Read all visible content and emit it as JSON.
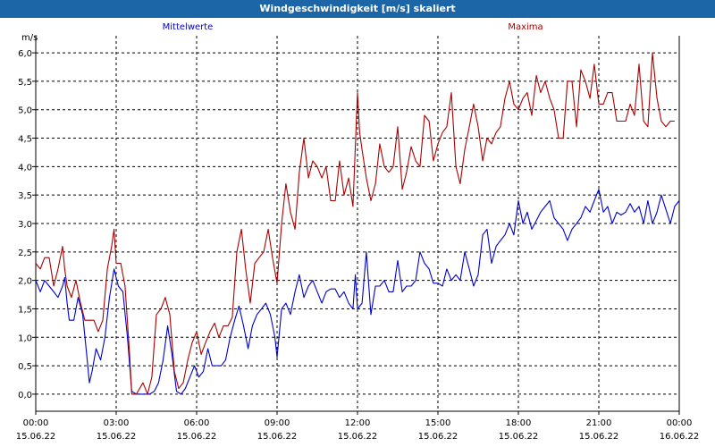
{
  "window": {
    "title": "Windgeschwindigkeit [m/s] skaliert"
  },
  "chart_data": {
    "type": "line",
    "title": "Windgeschwindigkeit [m/s] skaliert",
    "ylabel": "m/s",
    "xlabel": "",
    "ylim": [
      -0.3,
      6.3
    ],
    "xlim": [
      0,
      24
    ],
    "grid": true,
    "legend_placement": "top",
    "y_ticks": [
      0.0,
      0.5,
      1.0,
      1.5,
      2.0,
      2.5,
      3.0,
      3.5,
      4.0,
      4.5,
      5.0,
      5.5,
      6.0
    ],
    "y_tick_labels": [
      "0,0",
      "0,5",
      "1,0",
      "1,5",
      "2,0",
      "2,5",
      "3,0",
      "3,5",
      "4,0",
      "4,5",
      "5,0",
      "5,5",
      "6,0"
    ],
    "x_ticks": [
      {
        "time": "00:00",
        "date": "15.06.22"
      },
      {
        "time": "03:00",
        "date": "15.06.22"
      },
      {
        "time": "06:00",
        "date": "15.06.22"
      },
      {
        "time": "09:00",
        "date": "15.06.22"
      },
      {
        "time": "12:00",
        "date": "15.06.22"
      },
      {
        "time": "15:00",
        "date": "15.06.22"
      },
      {
        "time": "18:00",
        "date": "15.06.22"
      },
      {
        "time": "21:00",
        "date": "15.06.22"
      },
      {
        "time": "00:00",
        "date": "16.06.22"
      }
    ],
    "series": [
      {
        "name": "Mittelwerte",
        "color": "#0000cc",
        "points": [
          [
            0.0,
            2.0
          ],
          [
            0.17,
            1.8
          ],
          [
            0.33,
            2.0
          ],
          [
            0.5,
            1.9
          ],
          [
            0.67,
            1.8
          ],
          [
            0.83,
            1.7
          ],
          [
            1.0,
            1.9
          ],
          [
            1.08,
            2.05
          ],
          [
            1.17,
            1.6
          ],
          [
            1.25,
            1.3
          ],
          [
            1.42,
            1.3
          ],
          [
            1.58,
            1.7
          ],
          [
            1.75,
            1.4
          ],
          [
            1.92,
            0.6
          ],
          [
            2.0,
            0.2
          ],
          [
            2.1,
            0.4
          ],
          [
            2.25,
            0.8
          ],
          [
            2.42,
            0.6
          ],
          [
            2.58,
            1.0
          ],
          [
            2.75,
            1.7
          ],
          [
            2.92,
            2.2
          ],
          [
            3.08,
            1.9
          ],
          [
            3.25,
            1.8
          ],
          [
            3.42,
            1.0
          ],
          [
            3.58,
            0.05
          ],
          [
            3.75,
            0.0
          ],
          [
            4.0,
            0.0
          ],
          [
            4.25,
            0.0
          ],
          [
            4.42,
            0.05
          ],
          [
            4.58,
            0.2
          ],
          [
            4.75,
            0.6
          ],
          [
            4.92,
            1.2
          ],
          [
            5.08,
            0.7
          ],
          [
            5.25,
            0.05
          ],
          [
            5.42,
            0.0
          ],
          [
            5.58,
            0.1
          ],
          [
            5.75,
            0.3
          ],
          [
            5.92,
            0.5
          ],
          [
            6.08,
            0.3
          ],
          [
            6.25,
            0.4
          ],
          [
            6.42,
            0.8
          ],
          [
            6.58,
            0.5
          ],
          [
            6.75,
            0.5
          ],
          [
            6.92,
            0.5
          ],
          [
            7.08,
            0.6
          ],
          [
            7.25,
            1.0
          ],
          [
            7.42,
            1.3
          ],
          [
            7.58,
            1.55
          ],
          [
            7.75,
            1.2
          ],
          [
            7.92,
            0.8
          ],
          [
            8.08,
            1.2
          ],
          [
            8.25,
            1.4
          ],
          [
            8.42,
            1.5
          ],
          [
            8.58,
            1.6
          ],
          [
            8.75,
            1.4
          ],
          [
            8.92,
            1.0
          ],
          [
            9.0,
            0.65
          ],
          [
            9.17,
            1.5
          ],
          [
            9.33,
            1.6
          ],
          [
            9.5,
            1.4
          ],
          [
            9.67,
            1.8
          ],
          [
            9.83,
            2.1
          ],
          [
            10.0,
            1.7
          ],
          [
            10.17,
            1.9
          ],
          [
            10.33,
            2.0
          ],
          [
            10.5,
            1.8
          ],
          [
            10.67,
            1.6
          ],
          [
            10.83,
            1.8
          ],
          [
            11.0,
            1.85
          ],
          [
            11.17,
            1.85
          ],
          [
            11.33,
            1.7
          ],
          [
            11.5,
            1.8
          ],
          [
            11.67,
            1.6
          ],
          [
            11.83,
            1.5
          ],
          [
            11.92,
            2.1
          ],
          [
            12.0,
            1.5
          ],
          [
            12.17,
            1.6
          ],
          [
            12.33,
            2.5
          ],
          [
            12.5,
            1.4
          ],
          [
            12.67,
            1.9
          ],
          [
            12.83,
            1.9
          ],
          [
            13.0,
            2.0
          ],
          [
            13.17,
            1.8
          ],
          [
            13.33,
            1.8
          ],
          [
            13.5,
            2.35
          ],
          [
            13.67,
            1.8
          ],
          [
            13.83,
            1.9
          ],
          [
            14.0,
            1.9
          ],
          [
            14.17,
            2.0
          ],
          [
            14.33,
            2.5
          ],
          [
            14.5,
            2.3
          ],
          [
            14.67,
            2.2
          ],
          [
            14.83,
            1.95
          ],
          [
            15.0,
            1.95
          ],
          [
            15.17,
            1.9
          ],
          [
            15.33,
            2.2
          ],
          [
            15.5,
            2.0
          ],
          [
            15.67,
            2.1
          ],
          [
            15.83,
            2.0
          ],
          [
            16.0,
            2.5
          ],
          [
            16.17,
            2.2
          ],
          [
            16.33,
            1.9
          ],
          [
            16.5,
            2.1
          ],
          [
            16.67,
            2.8
          ],
          [
            16.83,
            2.9
          ],
          [
            17.0,
            2.3
          ],
          [
            17.17,
            2.6
          ],
          [
            17.33,
            2.7
          ],
          [
            17.5,
            2.8
          ],
          [
            17.67,
            3.0
          ],
          [
            17.83,
            2.8
          ],
          [
            18.0,
            3.4
          ],
          [
            18.17,
            3.0
          ],
          [
            18.33,
            3.2
          ],
          [
            18.5,
            2.9
          ],
          [
            18.67,
            3.05
          ],
          [
            18.83,
            3.2
          ],
          [
            19.0,
            3.3
          ],
          [
            19.17,
            3.4
          ],
          [
            19.33,
            3.1
          ],
          [
            19.5,
            3.0
          ],
          [
            19.67,
            2.9
          ],
          [
            19.83,
            2.7
          ],
          [
            20.0,
            2.9
          ],
          [
            20.17,
            3.0
          ],
          [
            20.33,
            3.1
          ],
          [
            20.5,
            3.3
          ],
          [
            20.67,
            3.2
          ],
          [
            20.83,
            3.4
          ],
          [
            21.0,
            3.6
          ],
          [
            21.17,
            3.2
          ],
          [
            21.33,
            3.3
          ],
          [
            21.5,
            3.0
          ],
          [
            21.67,
            3.2
          ],
          [
            21.83,
            3.15
          ],
          [
            22.0,
            3.2
          ],
          [
            22.17,
            3.35
          ],
          [
            22.33,
            3.2
          ],
          [
            22.5,
            3.3
          ],
          [
            22.67,
            3.0
          ],
          [
            22.83,
            3.4
          ],
          [
            23.0,
            3.0
          ],
          [
            23.17,
            3.2
          ],
          [
            23.33,
            3.5
          ],
          [
            23.5,
            3.25
          ],
          [
            23.67,
            3.0
          ],
          [
            23.83,
            3.3
          ],
          [
            24.0,
            3.4
          ]
        ]
      },
      {
        "name": "Maxima",
        "color": "#aa0000",
        "points": [
          [
            0.0,
            2.3
          ],
          [
            0.17,
            2.2
          ],
          [
            0.33,
            2.4
          ],
          [
            0.5,
            2.4
          ],
          [
            0.67,
            1.9
          ],
          [
            0.83,
            2.2
          ],
          [
            1.0,
            2.6
          ],
          [
            1.08,
            2.2
          ],
          [
            1.17,
            1.9
          ],
          [
            1.33,
            1.7
          ],
          [
            1.5,
            2.0
          ],
          [
            1.67,
            1.6
          ],
          [
            1.83,
            1.3
          ],
          [
            2.0,
            1.3
          ],
          [
            2.17,
            1.3
          ],
          [
            2.33,
            1.1
          ],
          [
            2.5,
            1.3
          ],
          [
            2.67,
            2.2
          ],
          [
            2.83,
            2.6
          ],
          [
            2.92,
            2.9
          ],
          [
            3.0,
            2.3
          ],
          [
            3.17,
            2.3
          ],
          [
            3.33,
            1.9
          ],
          [
            3.5,
            0.7
          ],
          [
            3.58,
            0.0
          ],
          [
            3.75,
            0.0
          ],
          [
            4.0,
            0.2
          ],
          [
            4.17,
            0.0
          ],
          [
            4.33,
            0.3
          ],
          [
            4.5,
            1.4
          ],
          [
            4.67,
            1.5
          ],
          [
            4.83,
            1.7
          ],
          [
            5.0,
            1.4
          ],
          [
            5.17,
            0.4
          ],
          [
            5.33,
            0.1
          ],
          [
            5.5,
            0.2
          ],
          [
            5.67,
            0.6
          ],
          [
            5.83,
            0.9
          ],
          [
            6.0,
            1.1
          ],
          [
            6.17,
            0.7
          ],
          [
            6.33,
            0.9
          ],
          [
            6.5,
            1.1
          ],
          [
            6.67,
            1.25
          ],
          [
            6.83,
            1.0
          ],
          [
            7.0,
            1.2
          ],
          [
            7.17,
            1.2
          ],
          [
            7.33,
            1.35
          ],
          [
            7.5,
            2.5
          ],
          [
            7.67,
            2.9
          ],
          [
            7.83,
            2.2
          ],
          [
            8.0,
            1.6
          ],
          [
            8.17,
            2.3
          ],
          [
            8.33,
            2.4
          ],
          [
            8.5,
            2.5
          ],
          [
            8.67,
            2.9
          ],
          [
            8.83,
            2.4
          ],
          [
            9.0,
            1.95
          ],
          [
            9.17,
            3.0
          ],
          [
            9.33,
            3.7
          ],
          [
            9.5,
            3.2
          ],
          [
            9.67,
            2.9
          ],
          [
            9.83,
            3.9
          ],
          [
            10.0,
            4.5
          ],
          [
            10.17,
            3.8
          ],
          [
            10.33,
            4.1
          ],
          [
            10.5,
            4.0
          ],
          [
            10.67,
            3.8
          ],
          [
            10.83,
            4.0
          ],
          [
            11.0,
            3.4
          ],
          [
            11.17,
            3.4
          ],
          [
            11.33,
            4.1
          ],
          [
            11.5,
            3.5
          ],
          [
            11.67,
            3.8
          ],
          [
            11.83,
            3.3
          ],
          [
            12.0,
            5.3
          ],
          [
            12.08,
            4.6
          ],
          [
            12.17,
            4.3
          ],
          [
            12.33,
            3.8
          ],
          [
            12.5,
            3.4
          ],
          [
            12.67,
            3.7
          ],
          [
            12.83,
            4.4
          ],
          [
            13.0,
            4.0
          ],
          [
            13.17,
            3.9
          ],
          [
            13.33,
            4.0
          ],
          [
            13.5,
            4.7
          ],
          [
            13.67,
            3.6
          ],
          [
            13.83,
            3.9
          ],
          [
            14.0,
            4.35
          ],
          [
            14.17,
            4.1
          ],
          [
            14.33,
            4.0
          ],
          [
            14.5,
            4.9
          ],
          [
            14.67,
            4.8
          ],
          [
            14.83,
            4.1
          ],
          [
            15.0,
            4.4
          ],
          [
            15.17,
            4.6
          ],
          [
            15.33,
            4.7
          ],
          [
            15.5,
            5.3
          ],
          [
            15.67,
            4.0
          ],
          [
            15.83,
            3.7
          ],
          [
            16.0,
            4.3
          ],
          [
            16.17,
            4.7
          ],
          [
            16.33,
            5.1
          ],
          [
            16.5,
            4.7
          ],
          [
            16.67,
            4.1
          ],
          [
            16.83,
            4.5
          ],
          [
            17.0,
            4.4
          ],
          [
            17.17,
            4.6
          ],
          [
            17.33,
            4.7
          ],
          [
            17.5,
            5.2
          ],
          [
            17.67,
            5.5
          ],
          [
            17.83,
            5.1
          ],
          [
            18.0,
            5.0
          ],
          [
            18.17,
            5.2
          ],
          [
            18.33,
            5.3
          ],
          [
            18.5,
            4.9
          ],
          [
            18.67,
            5.6
          ],
          [
            18.83,
            5.3
          ],
          [
            19.0,
            5.5
          ],
          [
            19.17,
            5.2
          ],
          [
            19.33,
            5.0
          ],
          [
            19.5,
            4.5
          ],
          [
            19.67,
            4.5
          ],
          [
            19.83,
            5.5
          ],
          [
            20.0,
            5.5
          ],
          [
            20.17,
            4.7
          ],
          [
            20.33,
            5.7
          ],
          [
            20.5,
            5.5
          ],
          [
            20.67,
            5.2
          ],
          [
            20.83,
            5.8
          ],
          [
            21.0,
            5.1
          ],
          [
            21.17,
            5.1
          ],
          [
            21.33,
            5.3
          ],
          [
            21.5,
            5.3
          ],
          [
            21.67,
            4.8
          ],
          [
            21.83,
            4.8
          ],
          [
            22.0,
            4.8
          ],
          [
            22.17,
            5.1
          ],
          [
            22.33,
            4.9
          ],
          [
            22.5,
            5.8
          ],
          [
            22.67,
            4.8
          ],
          [
            22.83,
            4.7
          ],
          [
            23.0,
            6.0
          ],
          [
            23.17,
            5.2
          ],
          [
            23.33,
            4.8
          ],
          [
            23.5,
            4.7
          ],
          [
            23.67,
            4.8
          ],
          [
            23.83,
            4.8
          ]
        ]
      }
    ]
  }
}
